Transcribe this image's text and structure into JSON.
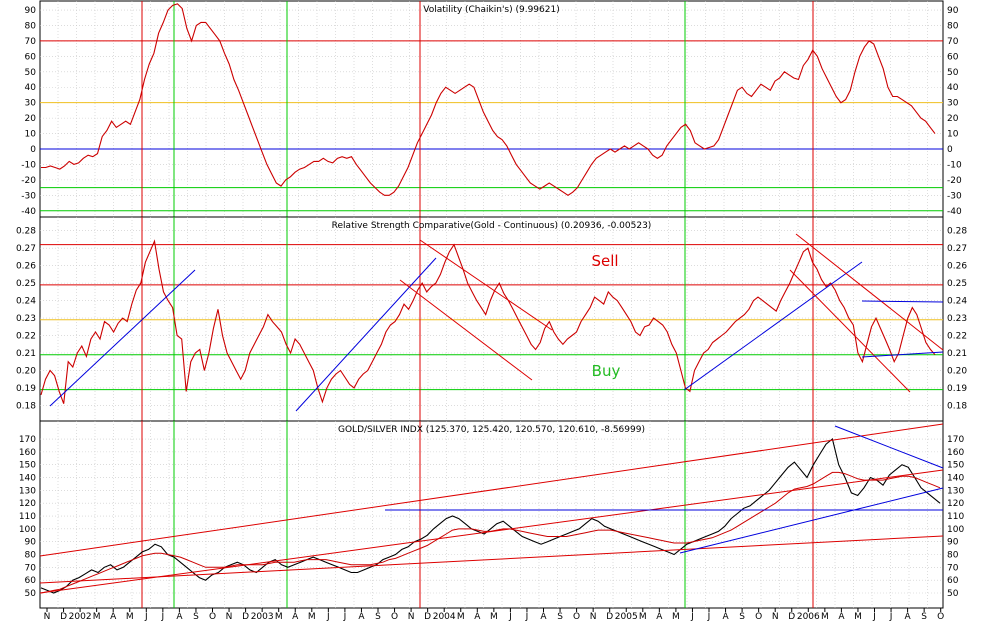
{
  "x_axis": {
    "ticks": [
      "N",
      "D",
      "2002",
      "M",
      "A",
      "M",
      "J",
      "J",
      "A",
      "S",
      "O",
      "N",
      "D",
      "2003",
      "M",
      "A",
      "M",
      "J",
      "J",
      "A",
      "S",
      "O",
      "N",
      "D",
      "2004",
      "M",
      "A",
      "M",
      "J",
      "J",
      "A",
      "S",
      "O",
      "N",
      "D",
      "2005",
      "M",
      "A",
      "M",
      "J",
      "J",
      "A",
      "S",
      "O",
      "N",
      "D",
      "2006",
      "M",
      "A",
      "M",
      "J",
      "J",
      "A",
      "S",
      "O"
    ]
  },
  "chart_data": [
    {
      "type": "line",
      "title": "Volatility (Chaikin's) (9.99621)",
      "ylim": [
        -45,
        97
      ],
      "yticks": [
        -40,
        -30,
        -20,
        -10,
        0,
        10,
        20,
        30,
        40,
        50,
        60,
        70,
        80,
        90
      ],
      "series": [
        {
          "color": "#cc0000",
          "values": [
            -12,
            -12,
            -11,
            -12,
            -13,
            -11,
            -8,
            -10,
            -9,
            -6,
            -4,
            -5,
            -3,
            8,
            12,
            18,
            14,
            16,
            18,
            16,
            24,
            32,
            45,
            55,
            62,
            75,
            82,
            90,
            93,
            94,
            91,
            78,
            70,
            80,
            82,
            82,
            78,
            74,
            70,
            62,
            55,
            45,
            38,
            30,
            22,
            14,
            6,
            -2,
            -10,
            -16,
            -22,
            -24,
            -20,
            -18,
            -15,
            -13,
            -12,
            -10,
            -8,
            -8,
            -6,
            -8,
            -9,
            -6,
            -5,
            -6,
            -5,
            -10,
            -14,
            -18,
            -22,
            -25,
            -28,
            -30,
            -30,
            -28,
            -24,
            -18,
            -12,
            -4,
            4,
            10,
            16,
            22,
            30,
            36,
            40,
            38,
            36,
            38,
            40,
            42,
            40,
            32,
            24,
            18,
            12,
            8,
            6,
            2,
            -4,
            -10,
            -14,
            -18,
            -22,
            -24,
            -26,
            -24,
            -22,
            -24,
            -26,
            -28,
            -30,
            -28,
            -25,
            -20,
            -15,
            -10,
            -6,
            -4,
            -2,
            0,
            -2,
            0,
            2,
            0,
            2,
            4,
            2,
            0,
            -4,
            -6,
            -4,
            2,
            6,
            10,
            14,
            16,
            12,
            4,
            2,
            0,
            1,
            2,
            6,
            14,
            22,
            30,
            38,
            40,
            36,
            34,
            38,
            42,
            40,
            38,
            44,
            46,
            50,
            48,
            46,
            45,
            54,
            58,
            64,
            60,
            52,
            46,
            40,
            34,
            30,
            32,
            38,
            50,
            60,
            66,
            70,
            68,
            60,
            52,
            40,
            34,
            34,
            32,
            30,
            28,
            24,
            20,
            18,
            14,
            10
          ]
        }
      ],
      "hlines": [
        {
          "y": -40,
          "color": "#00cc00"
        },
        {
          "y": -25,
          "color": "#00cc00"
        },
        {
          "y": 0,
          "color": "#0000dd"
        },
        {
          "y": 30,
          "color": "#f0c020"
        },
        {
          "y": 70,
          "color": "#dd0000"
        }
      ]
    },
    {
      "type": "line",
      "title": "Relative Strength Comparative(Gold - Continuous) (0.20936, -0.00523)",
      "ylim": [
        0.17,
        0.285
      ],
      "yticks": [
        0.18,
        0.19,
        0.2,
        0.21,
        0.22,
        0.23,
        0.24,
        0.25,
        0.26,
        0.27,
        0.28
      ],
      "series": [
        {
          "color": "#cc0000",
          "values": [
            0.186,
            0.195,
            0.2,
            0.197,
            0.188,
            0.181,
            0.205,
            0.202,
            0.21,
            0.214,
            0.208,
            0.218,
            0.222,
            0.218,
            0.228,
            0.226,
            0.222,
            0.227,
            0.23,
            0.228,
            0.238,
            0.246,
            0.25,
            0.262,
            0.268,
            0.274,
            0.258,
            0.245,
            0.24,
            0.236,
            0.22,
            0.218,
            0.188,
            0.205,
            0.21,
            0.212,
            0.2,
            0.21,
            0.224,
            0.235,
            0.22,
            0.21,
            0.205,
            0.2,
            0.195,
            0.2,
            0.21,
            0.215,
            0.22,
            0.225,
            0.232,
            0.228,
            0.225,
            0.222,
            0.215,
            0.21,
            0.218,
            0.215,
            0.21,
            0.205,
            0.2,
            0.19,
            0.182,
            0.19,
            0.195,
            0.198,
            0.2,
            0.196,
            0.192,
            0.19,
            0.195,
            0.198,
            0.2,
            0.205,
            0.21,
            0.215,
            0.222,
            0.226,
            0.228,
            0.232,
            0.238,
            0.235,
            0.24,
            0.246,
            0.25,
            0.245,
            0.248,
            0.25,
            0.255,
            0.262,
            0.268,
            0.272,
            0.265,
            0.258,
            0.25,
            0.245,
            0.24,
            0.236,
            0.232,
            0.24,
            0.246,
            0.25,
            0.244,
            0.24,
            0.235,
            0.23,
            0.225,
            0.22,
            0.215,
            0.212,
            0.216,
            0.224,
            0.228,
            0.222,
            0.218,
            0.215,
            0.218,
            0.22,
            0.222,
            0.228,
            0.232,
            0.236,
            0.242,
            0.24,
            0.238,
            0.245,
            0.242,
            0.24,
            0.236,
            0.232,
            0.228,
            0.222,
            0.22,
            0.225,
            0.226,
            0.23,
            0.228,
            0.226,
            0.222,
            0.215,
            0.21,
            0.2,
            0.19,
            0.188,
            0.2,
            0.205,
            0.21,
            0.212,
            0.216,
            0.218,
            0.22,
            0.222,
            0.225,
            0.228,
            0.23,
            0.232,
            0.235,
            0.24,
            0.242,
            0.24,
            0.238,
            0.236,
            0.234,
            0.24,
            0.245,
            0.25,
            0.256,
            0.262,
            0.268,
            0.27,
            0.262,
            0.258,
            0.252,
            0.248,
            0.25,
            0.246,
            0.24,
            0.236,
            0.23,
            0.226,
            0.21,
            0.205,
            0.215,
            0.225,
            0.23,
            0.224,
            0.218,
            0.212,
            0.205,
            0.21,
            0.22,
            0.23,
            0.236,
            0.232,
            0.224,
            0.216,
            0.212,
            0.209
          ]
        }
      ],
      "hlines": [
        {
          "y": 0.189,
          "color": "#00cc00"
        },
        {
          "y": 0.209,
          "color": "#00cc00"
        },
        {
          "y": 0.229,
          "color": "#f0c020"
        },
        {
          "y": 0.249,
          "color": "#dd0000"
        },
        {
          "y": 0.272,
          "color": "#dd0000"
        }
      ],
      "annotations": [
        {
          "text": "Sell",
          "color": "#dd0000"
        },
        {
          "text": "Buy",
          "color": "#22bb22"
        }
      ]
    },
    {
      "type": "line",
      "title": "GOLD/SILVER INDX (125.370, 125.420, 120.570, 120.610, -8.56999)",
      "ylim": [
        42,
        180
      ],
      "yticks": [
        50,
        60,
        70,
        80,
        90,
        100,
        110,
        120,
        130,
        140,
        150,
        160,
        170
      ],
      "series": [
        {
          "color": "#000000",
          "values": [
            54,
            52,
            50,
            52,
            55,
            60,
            62,
            65,
            68,
            66,
            70,
            72,
            68,
            70,
            74,
            78,
            82,
            84,
            88,
            86,
            80,
            78,
            74,
            70,
            66,
            62,
            60,
            64,
            66,
            70,
            72,
            74,
            72,
            68,
            66,
            70,
            74,
            76,
            72,
            70,
            72,
            74,
            76,
            78,
            76,
            74,
            72,
            70,
            68,
            66,
            66,
            68,
            70,
            72,
            76,
            78,
            80,
            84,
            86,
            90,
            92,
            95,
            100,
            104,
            108,
            110,
            108,
            104,
            100,
            98,
            96,
            100,
            104,
            106,
            102,
            98,
            94,
            92,
            90,
            88,
            90,
            92,
            94,
            96,
            98,
            100,
            104,
            108,
            106,
            102,
            100,
            98,
            96,
            94,
            92,
            90,
            88,
            86,
            84,
            82,
            80,
            84,
            88,
            90,
            92,
            94,
            96,
            98,
            102,
            108,
            112,
            116,
            118,
            122,
            126,
            130,
            136,
            142,
            148,
            152,
            146,
            140,
            150,
            158,
            166,
            170,
            150,
            140,
            128,
            126,
            132,
            140,
            138,
            134,
            142,
            146,
            150,
            148,
            140,
            132,
            128,
            124,
            120
          ]
        },
        {
          "color": "#cc0000",
          "values": [
            50,
            51,
            52,
            53,
            55,
            57,
            59,
            61,
            63,
            65,
            67,
            69,
            71,
            73,
            75,
            77,
            79,
            80,
            81,
            81,
            80,
            79,
            78,
            76,
            74,
            72,
            70,
            70,
            70,
            70,
            71,
            72,
            72,
            72,
            72,
            72,
            73,
            74,
            74,
            74,
            74,
            75,
            76,
            76,
            76,
            76,
            75,
            74,
            73,
            72,
            72,
            72,
            72,
            73,
            74,
            76,
            77,
            79,
            81,
            83,
            85,
            87,
            90,
            93,
            96,
            99,
            100,
            100,
            100,
            99,
            98,
            98,
            99,
            100,
            100,
            99,
            98,
            97,
            96,
            95,
            94,
            94,
            94,
            94,
            95,
            96,
            97,
            98,
            99,
            99,
            99,
            98,
            97,
            96,
            95,
            94,
            93,
            92,
            91,
            90,
            89,
            89,
            89,
            90,
            91,
            92,
            93,
            95,
            97,
            99,
            102,
            105,
            108,
            111,
            114,
            117,
            120,
            124,
            128,
            131,
            132,
            133,
            135,
            138,
            141,
            144,
            144,
            143,
            141,
            139,
            138,
            138,
            138,
            138,
            139,
            140,
            141,
            141,
            140,
            138,
            136,
            134,
            132
          ]
        }
      ]
    }
  ]
}
